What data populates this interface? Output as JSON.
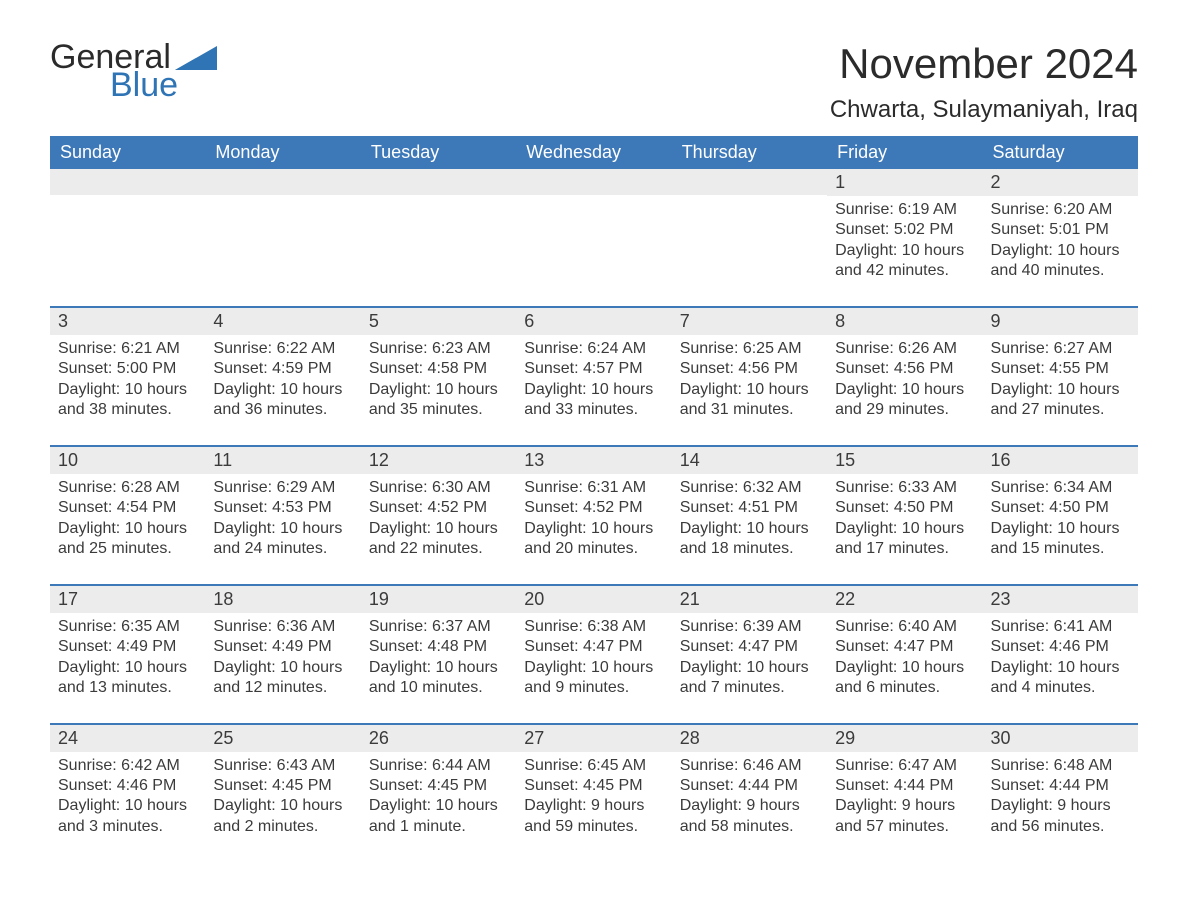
{
  "brand": {
    "text_general": "General",
    "text_blue": "Blue",
    "primary_color": "#2f74b5",
    "triangle_color": "#2f74b5"
  },
  "header": {
    "month_title": "November 2024",
    "location": "Chwarta, Sulaymaniyah, Iraq"
  },
  "colors": {
    "header_row_bg": "#3d78b8",
    "header_row_text": "#ffffff",
    "date_bar_bg": "#ececec",
    "date_bar_border": "#3d78b8",
    "body_text": "#3b3b3b",
    "background": "#ffffff"
  },
  "typography": {
    "month_title_fontsize": 42,
    "location_fontsize": 24,
    "day_header_fontsize": 18,
    "date_number_fontsize": 18,
    "detail_fontsize": 16
  },
  "layout": {
    "columns": 7,
    "rows": 5,
    "cell_padding": 8
  },
  "day_headers": [
    "Sunday",
    "Monday",
    "Tuesday",
    "Wednesday",
    "Thursday",
    "Friday",
    "Saturday"
  ],
  "weeks": [
    [
      {
        "date": null
      },
      {
        "date": null
      },
      {
        "date": null
      },
      {
        "date": null
      },
      {
        "date": null
      },
      {
        "date": "1",
        "sunrise": "Sunrise: 6:19 AM",
        "sunset": "Sunset: 5:02 PM",
        "daylight": "Daylight: 10 hours and 42 minutes."
      },
      {
        "date": "2",
        "sunrise": "Sunrise: 6:20 AM",
        "sunset": "Sunset: 5:01 PM",
        "daylight": "Daylight: 10 hours and 40 minutes."
      }
    ],
    [
      {
        "date": "3",
        "sunrise": "Sunrise: 6:21 AM",
        "sunset": "Sunset: 5:00 PM",
        "daylight": "Daylight: 10 hours and 38 minutes."
      },
      {
        "date": "4",
        "sunrise": "Sunrise: 6:22 AM",
        "sunset": "Sunset: 4:59 PM",
        "daylight": "Daylight: 10 hours and 36 minutes."
      },
      {
        "date": "5",
        "sunrise": "Sunrise: 6:23 AM",
        "sunset": "Sunset: 4:58 PM",
        "daylight": "Daylight: 10 hours and 35 minutes."
      },
      {
        "date": "6",
        "sunrise": "Sunrise: 6:24 AM",
        "sunset": "Sunset: 4:57 PM",
        "daylight": "Daylight: 10 hours and 33 minutes."
      },
      {
        "date": "7",
        "sunrise": "Sunrise: 6:25 AM",
        "sunset": "Sunset: 4:56 PM",
        "daylight": "Daylight: 10 hours and 31 minutes."
      },
      {
        "date": "8",
        "sunrise": "Sunrise: 6:26 AM",
        "sunset": "Sunset: 4:56 PM",
        "daylight": "Daylight: 10 hours and 29 minutes."
      },
      {
        "date": "9",
        "sunrise": "Sunrise: 6:27 AM",
        "sunset": "Sunset: 4:55 PM",
        "daylight": "Daylight: 10 hours and 27 minutes."
      }
    ],
    [
      {
        "date": "10",
        "sunrise": "Sunrise: 6:28 AM",
        "sunset": "Sunset: 4:54 PM",
        "daylight": "Daylight: 10 hours and 25 minutes."
      },
      {
        "date": "11",
        "sunrise": "Sunrise: 6:29 AM",
        "sunset": "Sunset: 4:53 PM",
        "daylight": "Daylight: 10 hours and 24 minutes."
      },
      {
        "date": "12",
        "sunrise": "Sunrise: 6:30 AM",
        "sunset": "Sunset: 4:52 PM",
        "daylight": "Daylight: 10 hours and 22 minutes."
      },
      {
        "date": "13",
        "sunrise": "Sunrise: 6:31 AM",
        "sunset": "Sunset: 4:52 PM",
        "daylight": "Daylight: 10 hours and 20 minutes."
      },
      {
        "date": "14",
        "sunrise": "Sunrise: 6:32 AM",
        "sunset": "Sunset: 4:51 PM",
        "daylight": "Daylight: 10 hours and 18 minutes."
      },
      {
        "date": "15",
        "sunrise": "Sunrise: 6:33 AM",
        "sunset": "Sunset: 4:50 PM",
        "daylight": "Daylight: 10 hours and 17 minutes."
      },
      {
        "date": "16",
        "sunrise": "Sunrise: 6:34 AM",
        "sunset": "Sunset: 4:50 PM",
        "daylight": "Daylight: 10 hours and 15 minutes."
      }
    ],
    [
      {
        "date": "17",
        "sunrise": "Sunrise: 6:35 AM",
        "sunset": "Sunset: 4:49 PM",
        "daylight": "Daylight: 10 hours and 13 minutes."
      },
      {
        "date": "18",
        "sunrise": "Sunrise: 6:36 AM",
        "sunset": "Sunset: 4:49 PM",
        "daylight": "Daylight: 10 hours and 12 minutes."
      },
      {
        "date": "19",
        "sunrise": "Sunrise: 6:37 AM",
        "sunset": "Sunset: 4:48 PM",
        "daylight": "Daylight: 10 hours and 10 minutes."
      },
      {
        "date": "20",
        "sunrise": "Sunrise: 6:38 AM",
        "sunset": "Sunset: 4:47 PM",
        "daylight": "Daylight: 10 hours and 9 minutes."
      },
      {
        "date": "21",
        "sunrise": "Sunrise: 6:39 AM",
        "sunset": "Sunset: 4:47 PM",
        "daylight": "Daylight: 10 hours and 7 minutes."
      },
      {
        "date": "22",
        "sunrise": "Sunrise: 6:40 AM",
        "sunset": "Sunset: 4:47 PM",
        "daylight": "Daylight: 10 hours and 6 minutes."
      },
      {
        "date": "23",
        "sunrise": "Sunrise: 6:41 AM",
        "sunset": "Sunset: 4:46 PM",
        "daylight": "Daylight: 10 hours and 4 minutes."
      }
    ],
    [
      {
        "date": "24",
        "sunrise": "Sunrise: 6:42 AM",
        "sunset": "Sunset: 4:46 PM",
        "daylight": "Daylight: 10 hours and 3 minutes."
      },
      {
        "date": "25",
        "sunrise": "Sunrise: 6:43 AM",
        "sunset": "Sunset: 4:45 PM",
        "daylight": "Daylight: 10 hours and 2 minutes."
      },
      {
        "date": "26",
        "sunrise": "Sunrise: 6:44 AM",
        "sunset": "Sunset: 4:45 PM",
        "daylight": "Daylight: 10 hours and 1 minute."
      },
      {
        "date": "27",
        "sunrise": "Sunrise: 6:45 AM",
        "sunset": "Sunset: 4:45 PM",
        "daylight": "Daylight: 9 hours and 59 minutes."
      },
      {
        "date": "28",
        "sunrise": "Sunrise: 6:46 AM",
        "sunset": "Sunset: 4:44 PM",
        "daylight": "Daylight: 9 hours and 58 minutes."
      },
      {
        "date": "29",
        "sunrise": "Sunrise: 6:47 AM",
        "sunset": "Sunset: 4:44 PM",
        "daylight": "Daylight: 9 hours and 57 minutes."
      },
      {
        "date": "30",
        "sunrise": "Sunrise: 6:48 AM",
        "sunset": "Sunset: 4:44 PM",
        "daylight": "Daylight: 9 hours and 56 minutes."
      }
    ]
  ]
}
